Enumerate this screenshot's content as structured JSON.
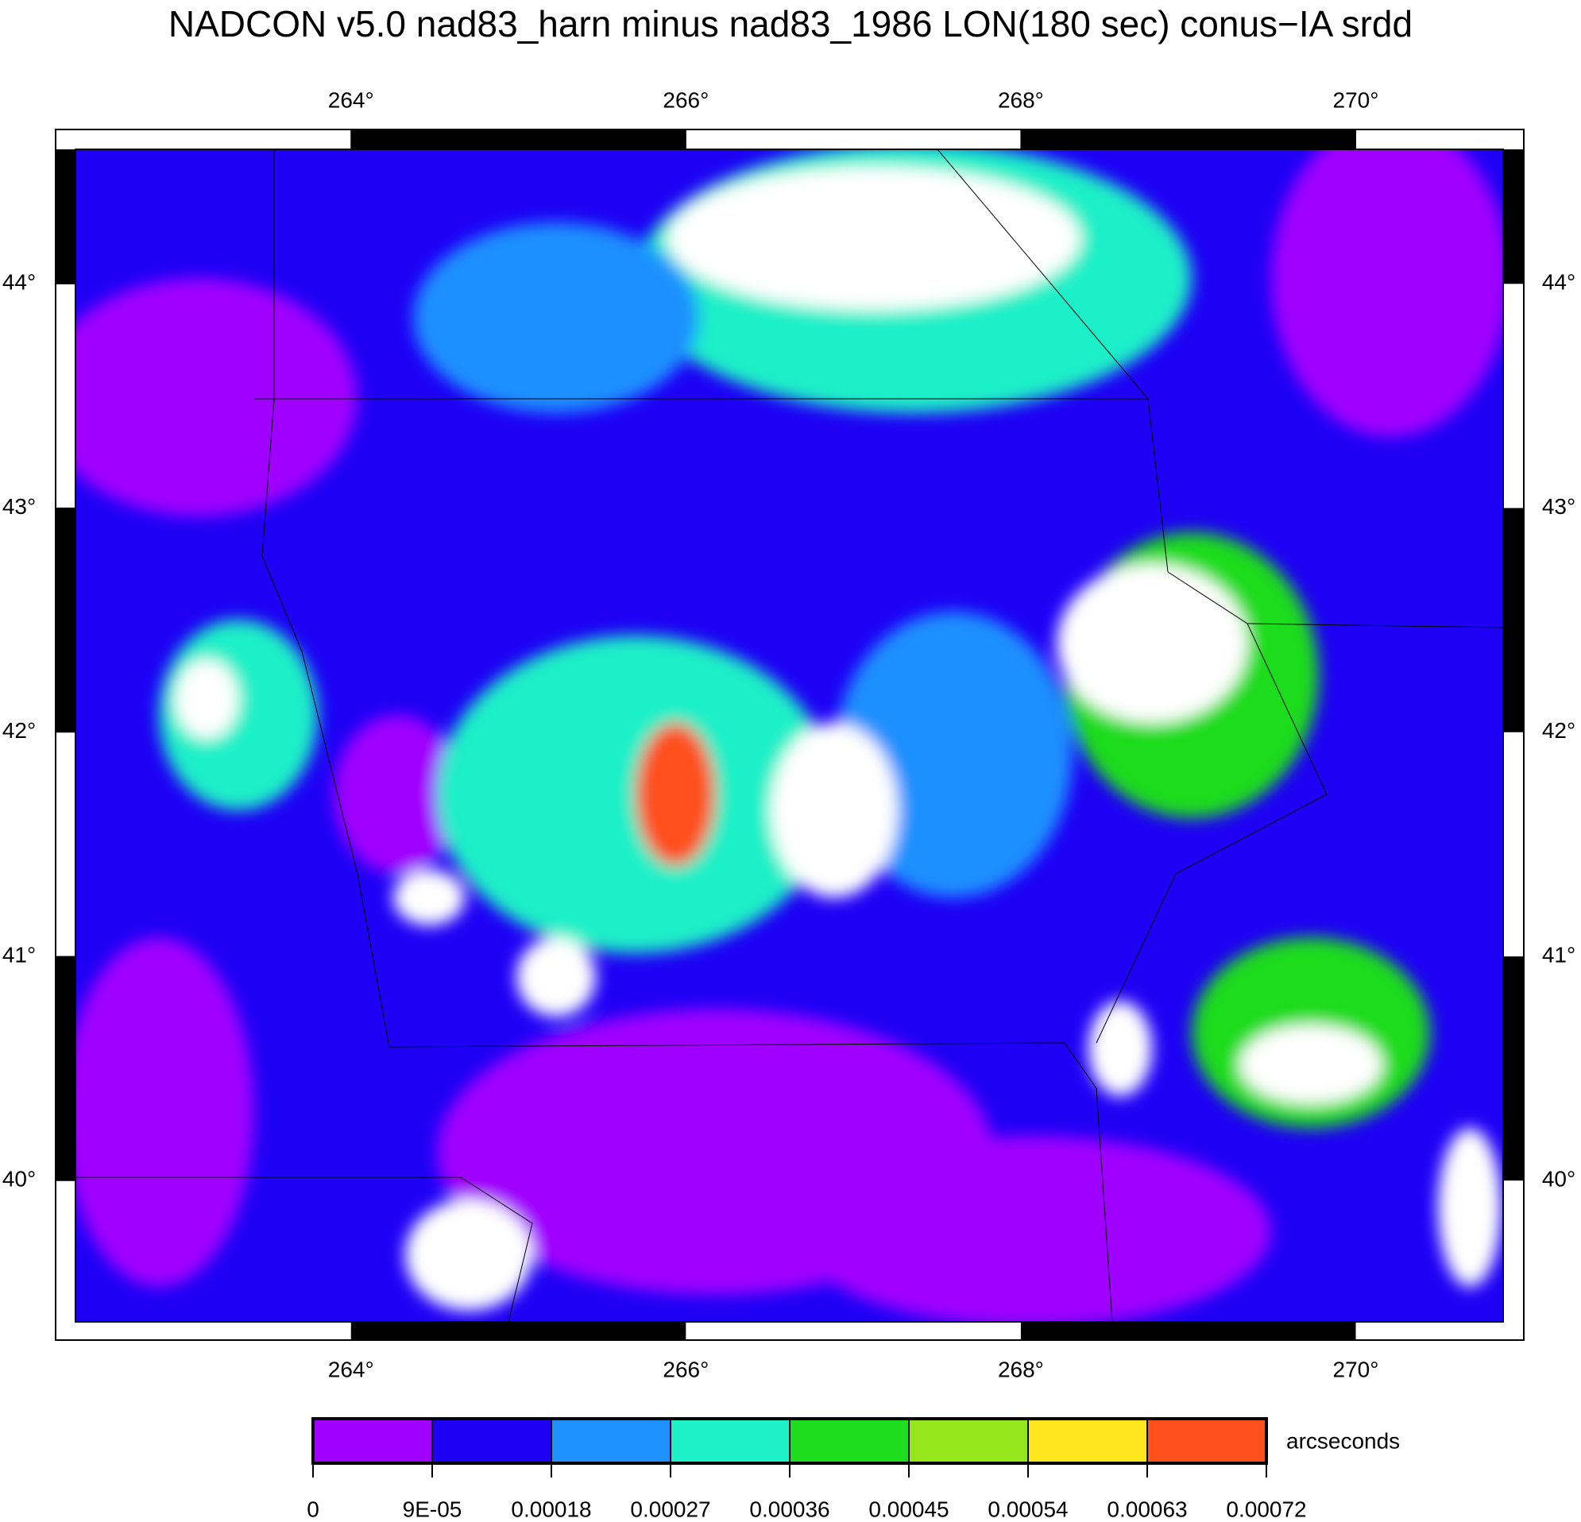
{
  "chart_data": {
    "type": "heatmap",
    "title": "NADCON v5.0 nad83_harn minus nad83_1986 LON(180 sec) conus−IA srdd",
    "xlim": [
      262.355,
      270.88
    ],
    "xticks": [
      {
        "value": 264,
        "label": "264°"
      },
      {
        "value": 266,
        "label": "266°"
      },
      {
        "value": 268,
        "label": "268°"
      },
      {
        "value": 270,
        "label": "270°"
      }
    ],
    "ylim": [
      39.37,
      44.6
    ],
    "yticks": [
      {
        "value": 40,
        "label": "40°"
      },
      {
        "value": 41,
        "label": "41°"
      },
      {
        "value": 42,
        "label": "42°"
      },
      {
        "value": 43,
        "label": "43°"
      },
      {
        "value": 44,
        "label": "44°"
      }
    ],
    "colorbar": {
      "label": "arcseconds",
      "clim": [
        0,
        0.00072
      ],
      "ticks": [
        0,
        {
          "value": 9e-05,
          "label": "9E-05"
        },
        0.00018,
        0.00027,
        0.00036,
        0.00045,
        0.00054,
        0.00063,
        0.00072
      ],
      "colors": [
        "#a000ff",
        "#1e00f5",
        "#1e90ff",
        "#1ef0c8",
        "#1edc1e",
        "#96e61e",
        "#ffe61e",
        "#ff501e"
      ]
    }
  }
}
